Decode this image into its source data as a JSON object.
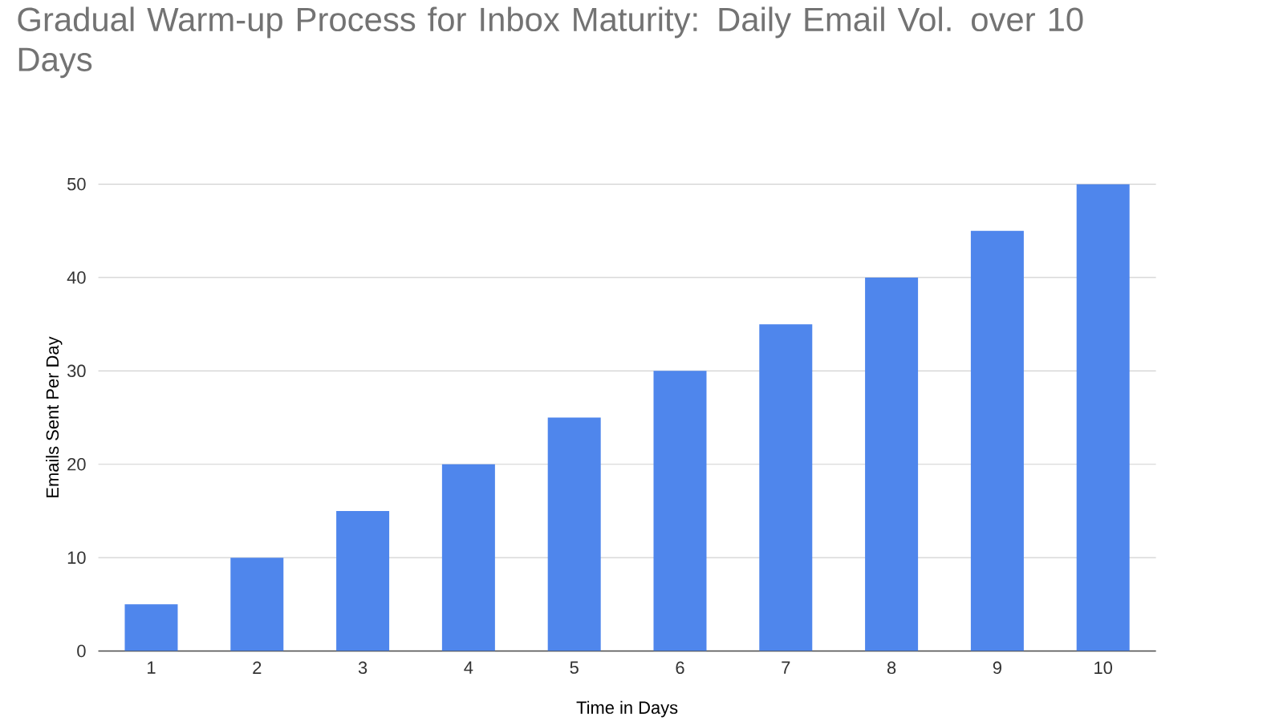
{
  "chart_data": {
    "type": "bar",
    "title": "Gradual Warm-up Process for Inbox Maturity: Daily Email Vol. over 10 Days",
    "xlabel": "Time in Days",
    "ylabel": "Emails Sent Per Day",
    "categories": [
      "1",
      "2",
      "3",
      "4",
      "5",
      "6",
      "7",
      "8",
      "9",
      "10"
    ],
    "values": [
      5,
      10,
      15,
      20,
      25,
      30,
      35,
      40,
      45,
      50
    ],
    "color": "#4f86ec",
    "ylim": [
      0,
      50
    ],
    "yticks": [
      0,
      10,
      20,
      30,
      40,
      50
    ],
    "grid": "y"
  }
}
